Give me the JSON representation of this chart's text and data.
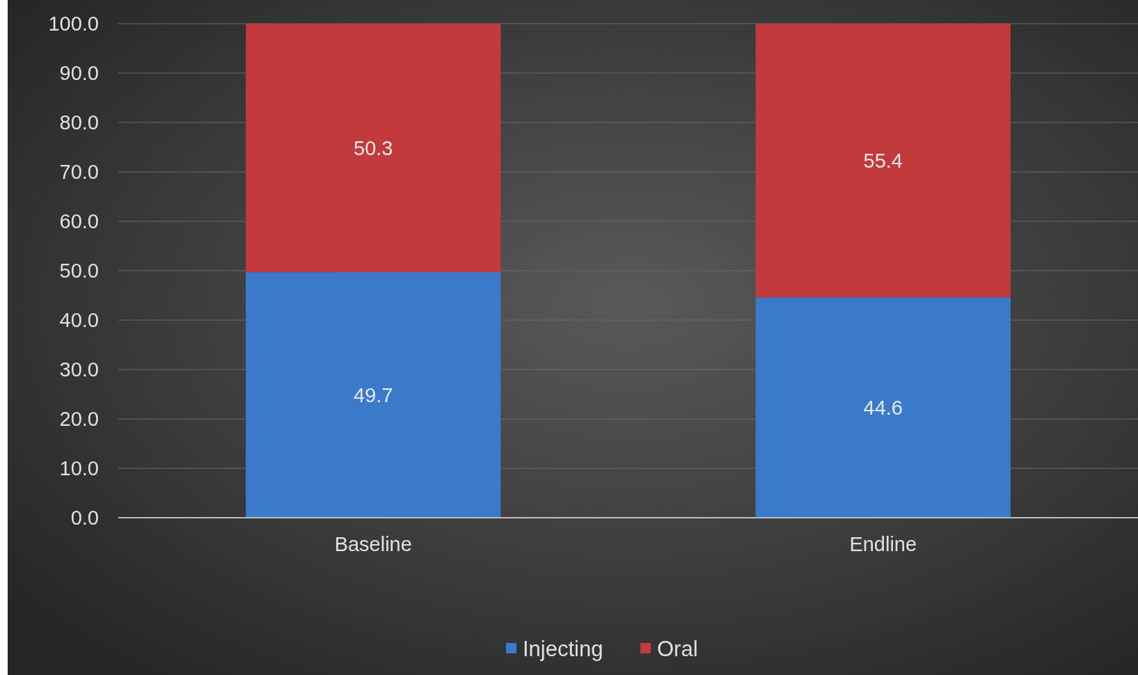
{
  "chart_data": {
    "type": "bar",
    "stacked": true,
    "categories": [
      "Baseline",
      "Endline"
    ],
    "series": [
      {
        "name": "Injecting",
        "color": "#3b7acb",
        "values": [
          49.7,
          44.6
        ]
      },
      {
        "name": "Oral",
        "color": "#c23a3b",
        "values": [
          50.3,
          55.4
        ]
      }
    ],
    "ylim": [
      0,
      100
    ],
    "yticks": [
      {
        "value": 0,
        "label": "0.0"
      },
      {
        "value": 10,
        "label": "10.0"
      },
      {
        "value": 20,
        "label": "20.0"
      },
      {
        "value": 30,
        "label": "30.0"
      },
      {
        "value": 40,
        "label": "40.0"
      },
      {
        "value": 50,
        "label": "50.0"
      },
      {
        "value": 60,
        "label": "60.0"
      },
      {
        "value": 70,
        "label": "70.0"
      },
      {
        "value": 80,
        "label": "80.0"
      },
      {
        "value": 90,
        "label": "90.0"
      },
      {
        "value": 100,
        "label": "100.0"
      }
    ],
    "grid": "y",
    "data_labels": true,
    "legend": "bottom"
  }
}
